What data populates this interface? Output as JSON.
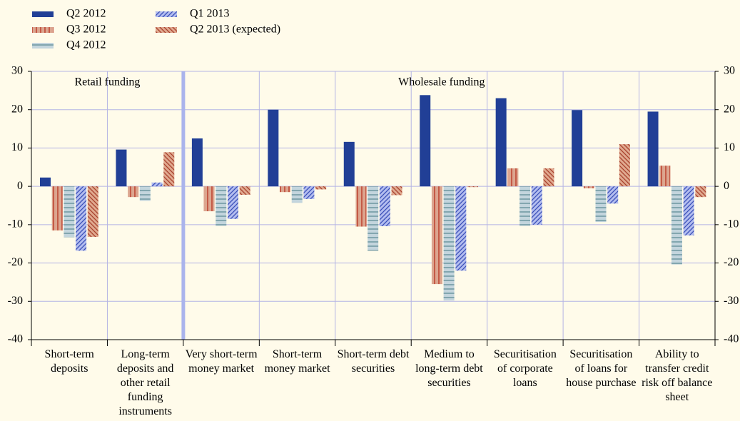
{
  "chart_data": {
    "type": "bar",
    "categories": [
      "Short-term deposits",
      "Long-term deposits and other retail funding instruments",
      "Very short-term money market",
      "Short-term money market",
      "Short-term debt securities",
      "Medium to long-term debt securities",
      "Securitisation of corporate loans",
      "Securitisation of loans for house purchase",
      "Ability to transfer credit risk off balance sheet"
    ],
    "series": [
      {
        "name": "Q2 2012",
        "color": "#213f96",
        "hatch": "none",
        "values": [
          2.3,
          9.6,
          12.5,
          20.0,
          11.6,
          23.8,
          23.0,
          19.9,
          19.5
        ]
      },
      {
        "name": "Q3 2012",
        "color": "#dca58f",
        "hatch": "vertical",
        "hatch_color": "#b8321f",
        "values": [
          -11.5,
          -2.8,
          -6.5,
          -1.5,
          -10.5,
          -25.5,
          4.7,
          -0.5,
          5.4
        ]
      },
      {
        "name": "Q4 2012",
        "color": "#c3d5dd",
        "hatch": "horizontal",
        "hatch_color": "#5f8c96",
        "values": [
          -13.3,
          -3.8,
          -10.3,
          -4.3,
          -16.8,
          -29.8,
          -10.3,
          -9.3,
          -20.4
        ]
      },
      {
        "name": "Q1 2013",
        "color": "#b3bdef",
        "hatch": "diagonal",
        "hatch_color": "#3a4fb8",
        "values": [
          -16.8,
          1.0,
          -8.5,
          -3.3,
          -10.4,
          -22.0,
          -10.0,
          -4.5,
          -12.8
        ]
      },
      {
        "name": "Q2 2013 (expected)",
        "color": "#e0a98f",
        "hatch": "backdiagonal",
        "hatch_color": "#a8402c",
        "values": [
          -13.2,
          8.9,
          -2.2,
          -0.8,
          -2.3,
          -0.2,
          4.7,
          11.0,
          -2.8
        ]
      }
    ],
    "annotations": [
      "Retail funding",
      "Wholesale funding"
    ],
    "ylim": [
      -40,
      30
    ],
    "yticks": [
      -40,
      -30,
      -20,
      -10,
      0,
      10,
      20,
      30
    ],
    "y2lim": [
      -40,
      30
    ],
    "y2ticks": [
      -40,
      -30,
      -20,
      -10,
      0,
      10,
      20,
      30
    ],
    "grid": true,
    "legend": "top-left"
  }
}
